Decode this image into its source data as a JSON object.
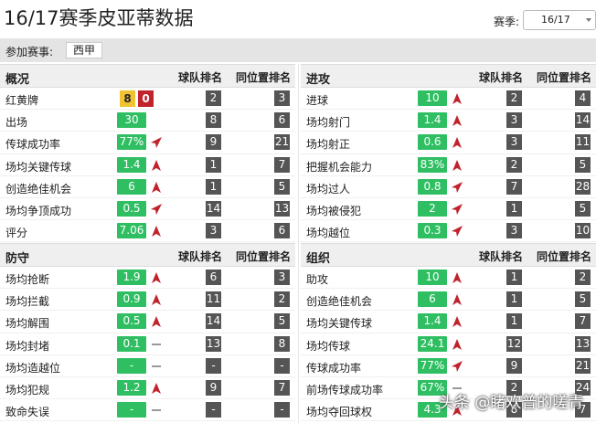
{
  "page_title": "16/17赛季皮亚蒂数据",
  "season": {
    "label": "赛季:",
    "selected": "16/17"
  },
  "competition": {
    "label": "参加赛事:",
    "tag": "西甲"
  },
  "colors": {
    "green": "#2fbf62",
    "rank_bg": "#555555",
    "trend_red": "#c0232c",
    "yellow_card": "#f1c232",
    "red_card": "#c0232c"
  },
  "sections": {
    "overview": {
      "title": "概况",
      "col1": "球队排名",
      "col2": "同位置排名",
      "rows": [
        {
          "label": "红黄牌",
          "yellow": "8",
          "red": "0",
          "team_rank": "2",
          "pos_rank": "3"
        },
        {
          "label": "出场",
          "value": "30",
          "trend": "",
          "team_rank": "8",
          "pos_rank": "6"
        },
        {
          "label": "传球成功率",
          "value": "77%",
          "trend": "right-up",
          "team_rank": "9",
          "pos_rank": "21"
        },
        {
          "label": "场均关键传球",
          "value": "1.4",
          "trend": "up",
          "team_rank": "1",
          "pos_rank": "7"
        },
        {
          "label": "创造绝佳机会",
          "value": "6",
          "trend": "up",
          "team_rank": "1",
          "pos_rank": "5"
        },
        {
          "label": "场均争顶成功",
          "value": "0.5",
          "trend": "right-up",
          "team_rank": "14",
          "pos_rank": "13"
        },
        {
          "label": "评分",
          "value": "7.06",
          "trend": "up",
          "team_rank": "3",
          "pos_rank": "6"
        }
      ]
    },
    "attack": {
      "title": "进攻",
      "col1": "球队排名",
      "col2": "同位置排名",
      "rows": [
        {
          "label": "进球",
          "value": "10",
          "trend": "up",
          "team_rank": "2",
          "pos_rank": "4"
        },
        {
          "label": "场均射门",
          "value": "1.4",
          "trend": "up",
          "team_rank": "3",
          "pos_rank": "14"
        },
        {
          "label": "场均射正",
          "value": "0.6",
          "trend": "up",
          "team_rank": "3",
          "pos_rank": "11"
        },
        {
          "label": "把握机会能力",
          "value": "83%",
          "trend": "up",
          "team_rank": "2",
          "pos_rank": "5"
        },
        {
          "label": "场均过人",
          "value": "0.8",
          "trend": "right-up",
          "team_rank": "7",
          "pos_rank": "28"
        },
        {
          "label": "场均被侵犯",
          "value": "2",
          "trend": "right-up",
          "team_rank": "1",
          "pos_rank": "5"
        },
        {
          "label": "场均越位",
          "value": "0.3",
          "trend": "right-up",
          "team_rank": "3",
          "pos_rank": "10"
        }
      ]
    },
    "defense": {
      "title": "防守",
      "col1": "球队排名",
      "col2": "同位置排名",
      "rows": [
        {
          "label": "场均抢断",
          "value": "1.9",
          "trend": "up",
          "team_rank": "6",
          "pos_rank": "3"
        },
        {
          "label": "场均拦截",
          "value": "0.9",
          "trend": "up",
          "team_rank": "11",
          "pos_rank": "2"
        },
        {
          "label": "场均解围",
          "value": "0.5",
          "trend": "up",
          "team_rank": "14",
          "pos_rank": "5"
        },
        {
          "label": "场均封堵",
          "value": "0.1",
          "trend": "flat",
          "team_rank": "13",
          "pos_rank": "8"
        },
        {
          "label": "场均造越位",
          "value": "-",
          "trend": "flat",
          "team_rank": "-",
          "pos_rank": "-"
        },
        {
          "label": "场均犯规",
          "value": "1.2",
          "trend": "up",
          "team_rank": "9",
          "pos_rank": "7"
        },
        {
          "label": "致命失误",
          "value": "-",
          "trend": "flat",
          "team_rank": "-",
          "pos_rank": "-"
        }
      ]
    },
    "organize": {
      "title": "组织",
      "col1": "球队排名",
      "col2": "同位置排名",
      "rows": [
        {
          "label": "助攻",
          "value": "10",
          "trend": "up",
          "team_rank": "1",
          "pos_rank": "2"
        },
        {
          "label": "创造绝佳机会",
          "value": "6",
          "trend": "up",
          "team_rank": "1",
          "pos_rank": "5"
        },
        {
          "label": "场均关键传球",
          "value": "1.4",
          "trend": "up",
          "team_rank": "1",
          "pos_rank": "7"
        },
        {
          "label": "场均传球",
          "value": "24.1",
          "trend": "up",
          "team_rank": "12",
          "pos_rank": "13"
        },
        {
          "label": "传球成功率",
          "value": "77%",
          "trend": "right-up",
          "team_rank": "9",
          "pos_rank": "21"
        },
        {
          "label": "前场传球成功率",
          "value": "67%",
          "trend": "flat",
          "team_rank": "2",
          "pos_rank": "24"
        },
        {
          "label": "场均夺回球权",
          "value": "4.3",
          "trend": "up",
          "team_rank": "8",
          "pos_rank": "7"
        }
      ]
    }
  },
  "watermark": "头条 @睹欢普的嗟青"
}
